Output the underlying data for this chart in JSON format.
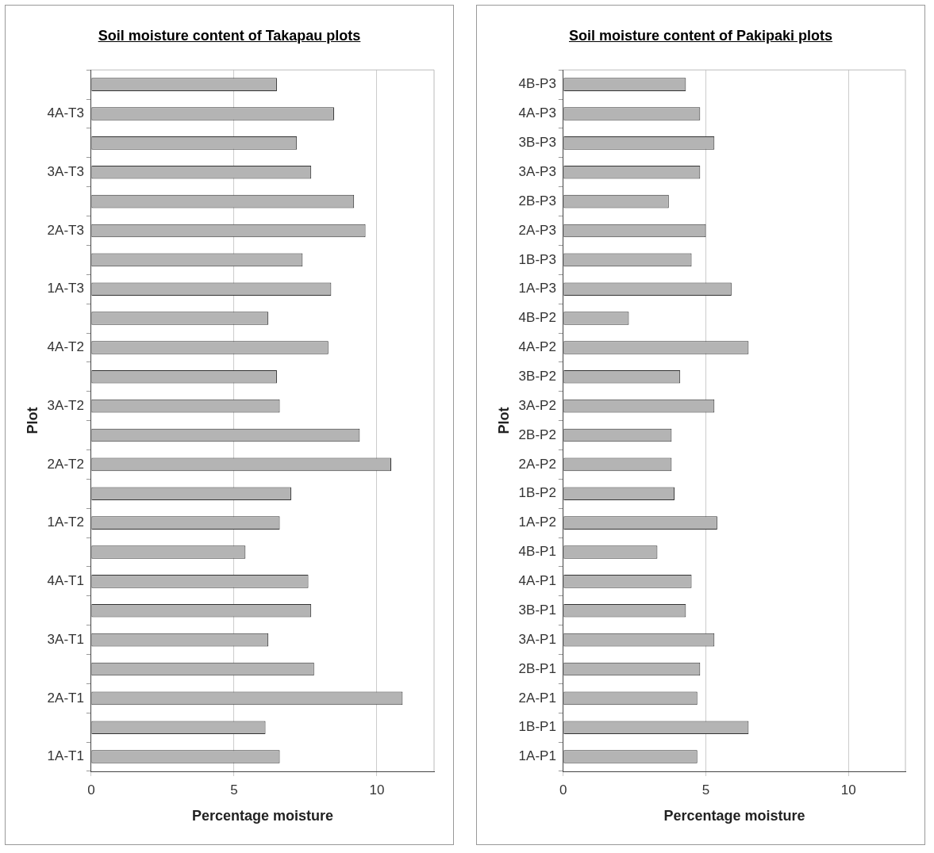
{
  "chart_data": [
    {
      "type": "bar",
      "orientation": "horizontal",
      "title": "Soil moisture content of Takapau plots",
      "xlabel": "Percentage moisture",
      "ylabel": "Plot",
      "categories": [
        null,
        "4A-T3",
        null,
        "3A-T3",
        null,
        "2A-T3",
        null,
        "1A-T3",
        null,
        "4A-T2",
        null,
        "3A-T2",
        null,
        "2A-T2",
        null,
        "1A-T2",
        null,
        "4A-T1",
        null,
        "3A-T1",
        null,
        "2A-T1",
        null,
        "1A-T1"
      ],
      "values": [
        6.5,
        8.5,
        7.2,
        7.7,
        9.2,
        9.6,
        7.4,
        8.4,
        6.2,
        8.3,
        6.5,
        6.6,
        9.4,
        10.5,
        7.0,
        6.6,
        5.4,
        7.6,
        7.7,
        6.2,
        7.8,
        10.9,
        6.1,
        6.6
      ],
      "color": "#b4b4b4",
      "xlim": [
        0,
        12
      ],
      "xticks": [
        0,
        5,
        10
      ],
      "grid": "x"
    },
    {
      "type": "bar",
      "orientation": "horizontal",
      "title": "Soil moisture content of Pakipaki plots",
      "xlabel": "Percentage moisture",
      "ylabel": "Plot",
      "categories": [
        "4B-P3",
        "4A-P3",
        "3B-P3",
        "3A-P3",
        "2B-P3",
        "2A-P3",
        "1B-P3",
        "1A-P3",
        "4B-P2",
        "4A-P2",
        "3B-P2",
        "3A-P2",
        "2B-P2",
        "2A-P2",
        "1B-P2",
        "1A-P2",
        "4B-P1",
        "4A-P1",
        "3B-P1",
        "3A-P1",
        "2B-P1",
        "2A-P1",
        "1B-P1",
        "1A-P1"
      ],
      "values": [
        4.3,
        4.8,
        5.3,
        4.8,
        3.7,
        5.0,
        4.5,
        5.9,
        2.3,
        6.5,
        4.1,
        5.3,
        3.8,
        3.8,
        3.9,
        5.4,
        3.3,
        4.5,
        4.3,
        5.3,
        4.8,
        4.7,
        6.5,
        4.7
      ],
      "color": "#b4b4b4",
      "xlim": [
        0,
        12
      ],
      "xticks": [
        0,
        5,
        10
      ],
      "grid": "x"
    }
  ]
}
